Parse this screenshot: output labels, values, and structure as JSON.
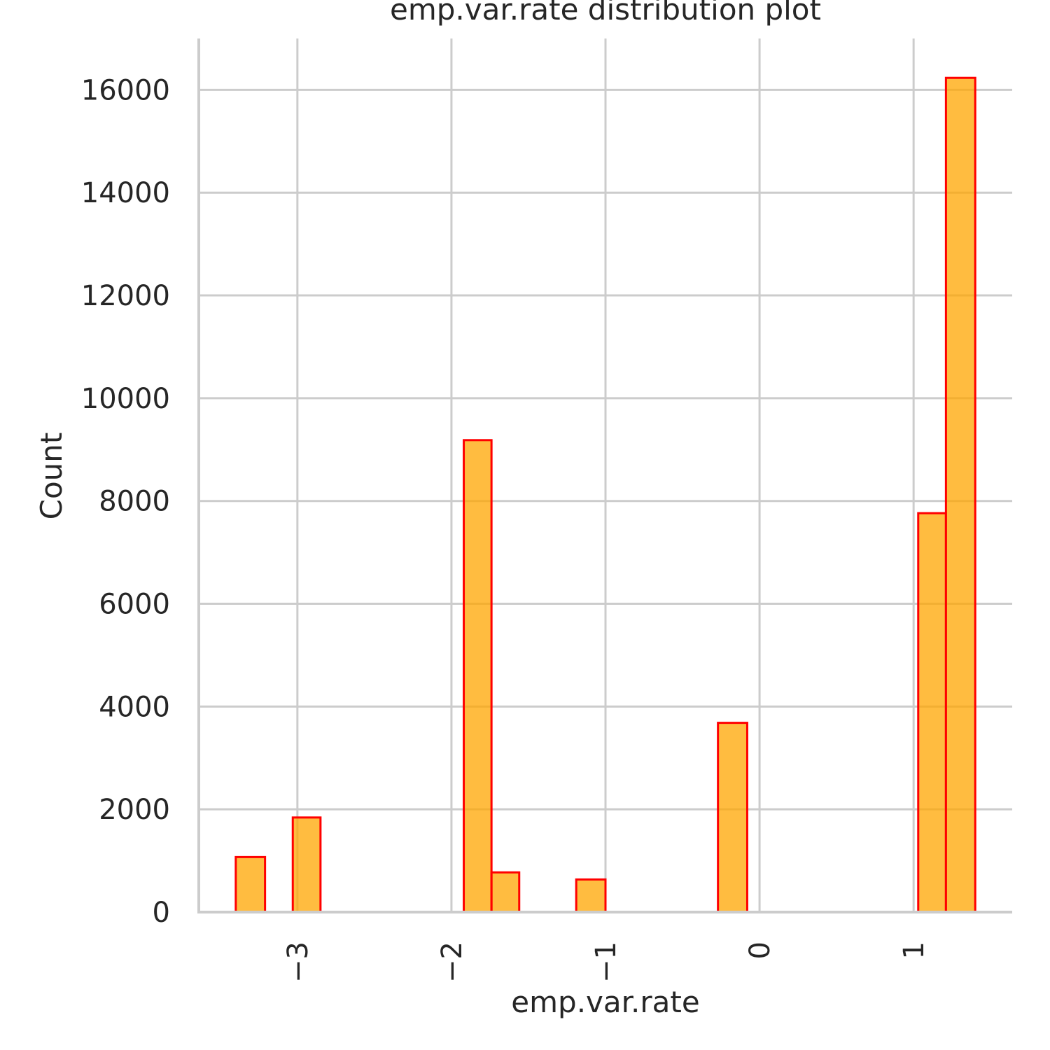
{
  "chart_data": {
    "type": "bar",
    "title": "emp.var.rate distribution plot",
    "xlabel": "emp.var.rate",
    "ylabel": "Count",
    "xlim": [
      -3.64,
      1.64
    ],
    "ylim": [
      0,
      17000
    ],
    "x_ticks": [
      -3,
      -2,
      -1,
      0,
      1
    ],
    "x_tick_labels": [
      "−3",
      "−2",
      "−1",
      "0",
      "1"
    ],
    "y_ticks": [
      0,
      2000,
      4000,
      6000,
      8000,
      10000,
      12000,
      14000,
      16000
    ],
    "y_tick_labels": [
      "0",
      "2000",
      "4000",
      "6000",
      "8000",
      "10000",
      "12000",
      "14000",
      "16000"
    ],
    "grid": true,
    "bar_color": "#ffa500",
    "bar_edge_color": "#ff0000",
    "bins": [
      {
        "x0": -3.4,
        "x1": -3.21,
        "count": 1071
      },
      {
        "x0": -3.03,
        "x1": -2.85,
        "count": 1841
      },
      {
        "x0": -1.92,
        "x1": -1.74,
        "count": 9184
      },
      {
        "x0": -1.74,
        "x1": -1.56,
        "count": 773
      },
      {
        "x0": -1.19,
        "x1": -1.0,
        "count": 635
      },
      {
        "x0": -0.27,
        "x1": -0.08,
        "count": 3683
      },
      {
        "x0": 1.03,
        "x1": 1.21,
        "count": 7763
      },
      {
        "x0": 1.21,
        "x1": 1.4,
        "count": 16234
      }
    ]
  }
}
